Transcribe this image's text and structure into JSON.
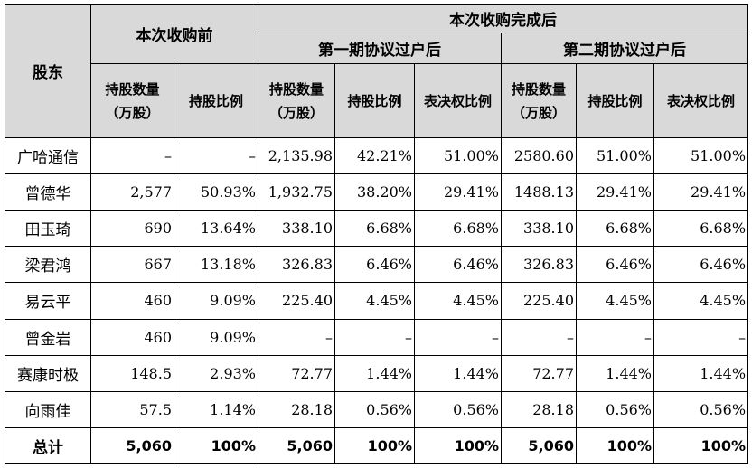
{
  "header": {
    "shareholder": "股东",
    "before": "本次收购前",
    "after": "本次收购完成后",
    "phase1": "第一期协议过户后",
    "phase2": "第二期协议过户后",
    "qty_l1": "持股数量",
    "qty_l2": "（万股）",
    "ratio": "持股比例",
    "vote": "表决权比例"
  },
  "rows": [
    {
      "name": "广哈通信",
      "b_qty": "–",
      "b_ratio": "–",
      "p1_qty": "2,135.98",
      "p1_ratio": "42.21%",
      "p1_vote": "51.00%",
      "p2_qty": "2580.60",
      "p2_ratio": "51.00%",
      "p2_vote": "51.00%"
    },
    {
      "name": "曾德华",
      "b_qty": "2,577",
      "b_ratio": "50.93%",
      "p1_qty": "1,932.75",
      "p1_ratio": "38.20%",
      "p1_vote": "29.41%",
      "p2_qty": "1488.13",
      "p2_ratio": "29.41%",
      "p2_vote": "29.41%"
    },
    {
      "name": "田玉琦",
      "b_qty": "690",
      "b_ratio": "13.64%",
      "p1_qty": "338.10",
      "p1_ratio": "6.68%",
      "p1_vote": "6.68%",
      "p2_qty": "338.10",
      "p2_ratio": "6.68%",
      "p2_vote": "6.68%"
    },
    {
      "name": "梁君鸿",
      "b_qty": "667",
      "b_ratio": "13.18%",
      "p1_qty": "326.83",
      "p1_ratio": "6.46%",
      "p1_vote": "6.46%",
      "p2_qty": "326.83",
      "p2_ratio": "6.46%",
      "p2_vote": "6.46%"
    },
    {
      "name": "易云平",
      "b_qty": "460",
      "b_ratio": "9.09%",
      "p1_qty": "225.40",
      "p1_ratio": "4.45%",
      "p1_vote": "4.45%",
      "p2_qty": "225.40",
      "p2_ratio": "4.45%",
      "p2_vote": "4.45%"
    },
    {
      "name": "曾金岩",
      "b_qty": "460",
      "b_ratio": "9.09%",
      "p1_qty": "–",
      "p1_ratio": "–",
      "p1_vote": "–",
      "p2_qty": "–",
      "p2_ratio": "–",
      "p2_vote": "–"
    },
    {
      "name": "赛康时极",
      "b_qty": "148.5",
      "b_ratio": "2.93%",
      "p1_qty": "72.77",
      "p1_ratio": "1.44%",
      "p1_vote": "1.44%",
      "p2_qty": "72.77",
      "p2_ratio": "1.44%",
      "p2_vote": "1.44%"
    },
    {
      "name": "向雨佳",
      "b_qty": "57.5",
      "b_ratio": "1.14%",
      "p1_qty": "28.18",
      "p1_ratio": "0.56%",
      "p1_vote": "0.56%",
      "p2_qty": "28.18",
      "p2_ratio": "0.56%",
      "p2_vote": "0.56%"
    },
    {
      "name": "总计",
      "b_qty": "5,060",
      "b_ratio": "100%",
      "p1_qty": "5,060",
      "p1_ratio": "100%",
      "p1_vote": "100%",
      "p2_qty": "5,060",
      "p2_ratio": "100%",
      "p2_vote": "100%"
    }
  ],
  "colors": {
    "header_bg": "#d9d9d9",
    "border": "#000000"
  }
}
